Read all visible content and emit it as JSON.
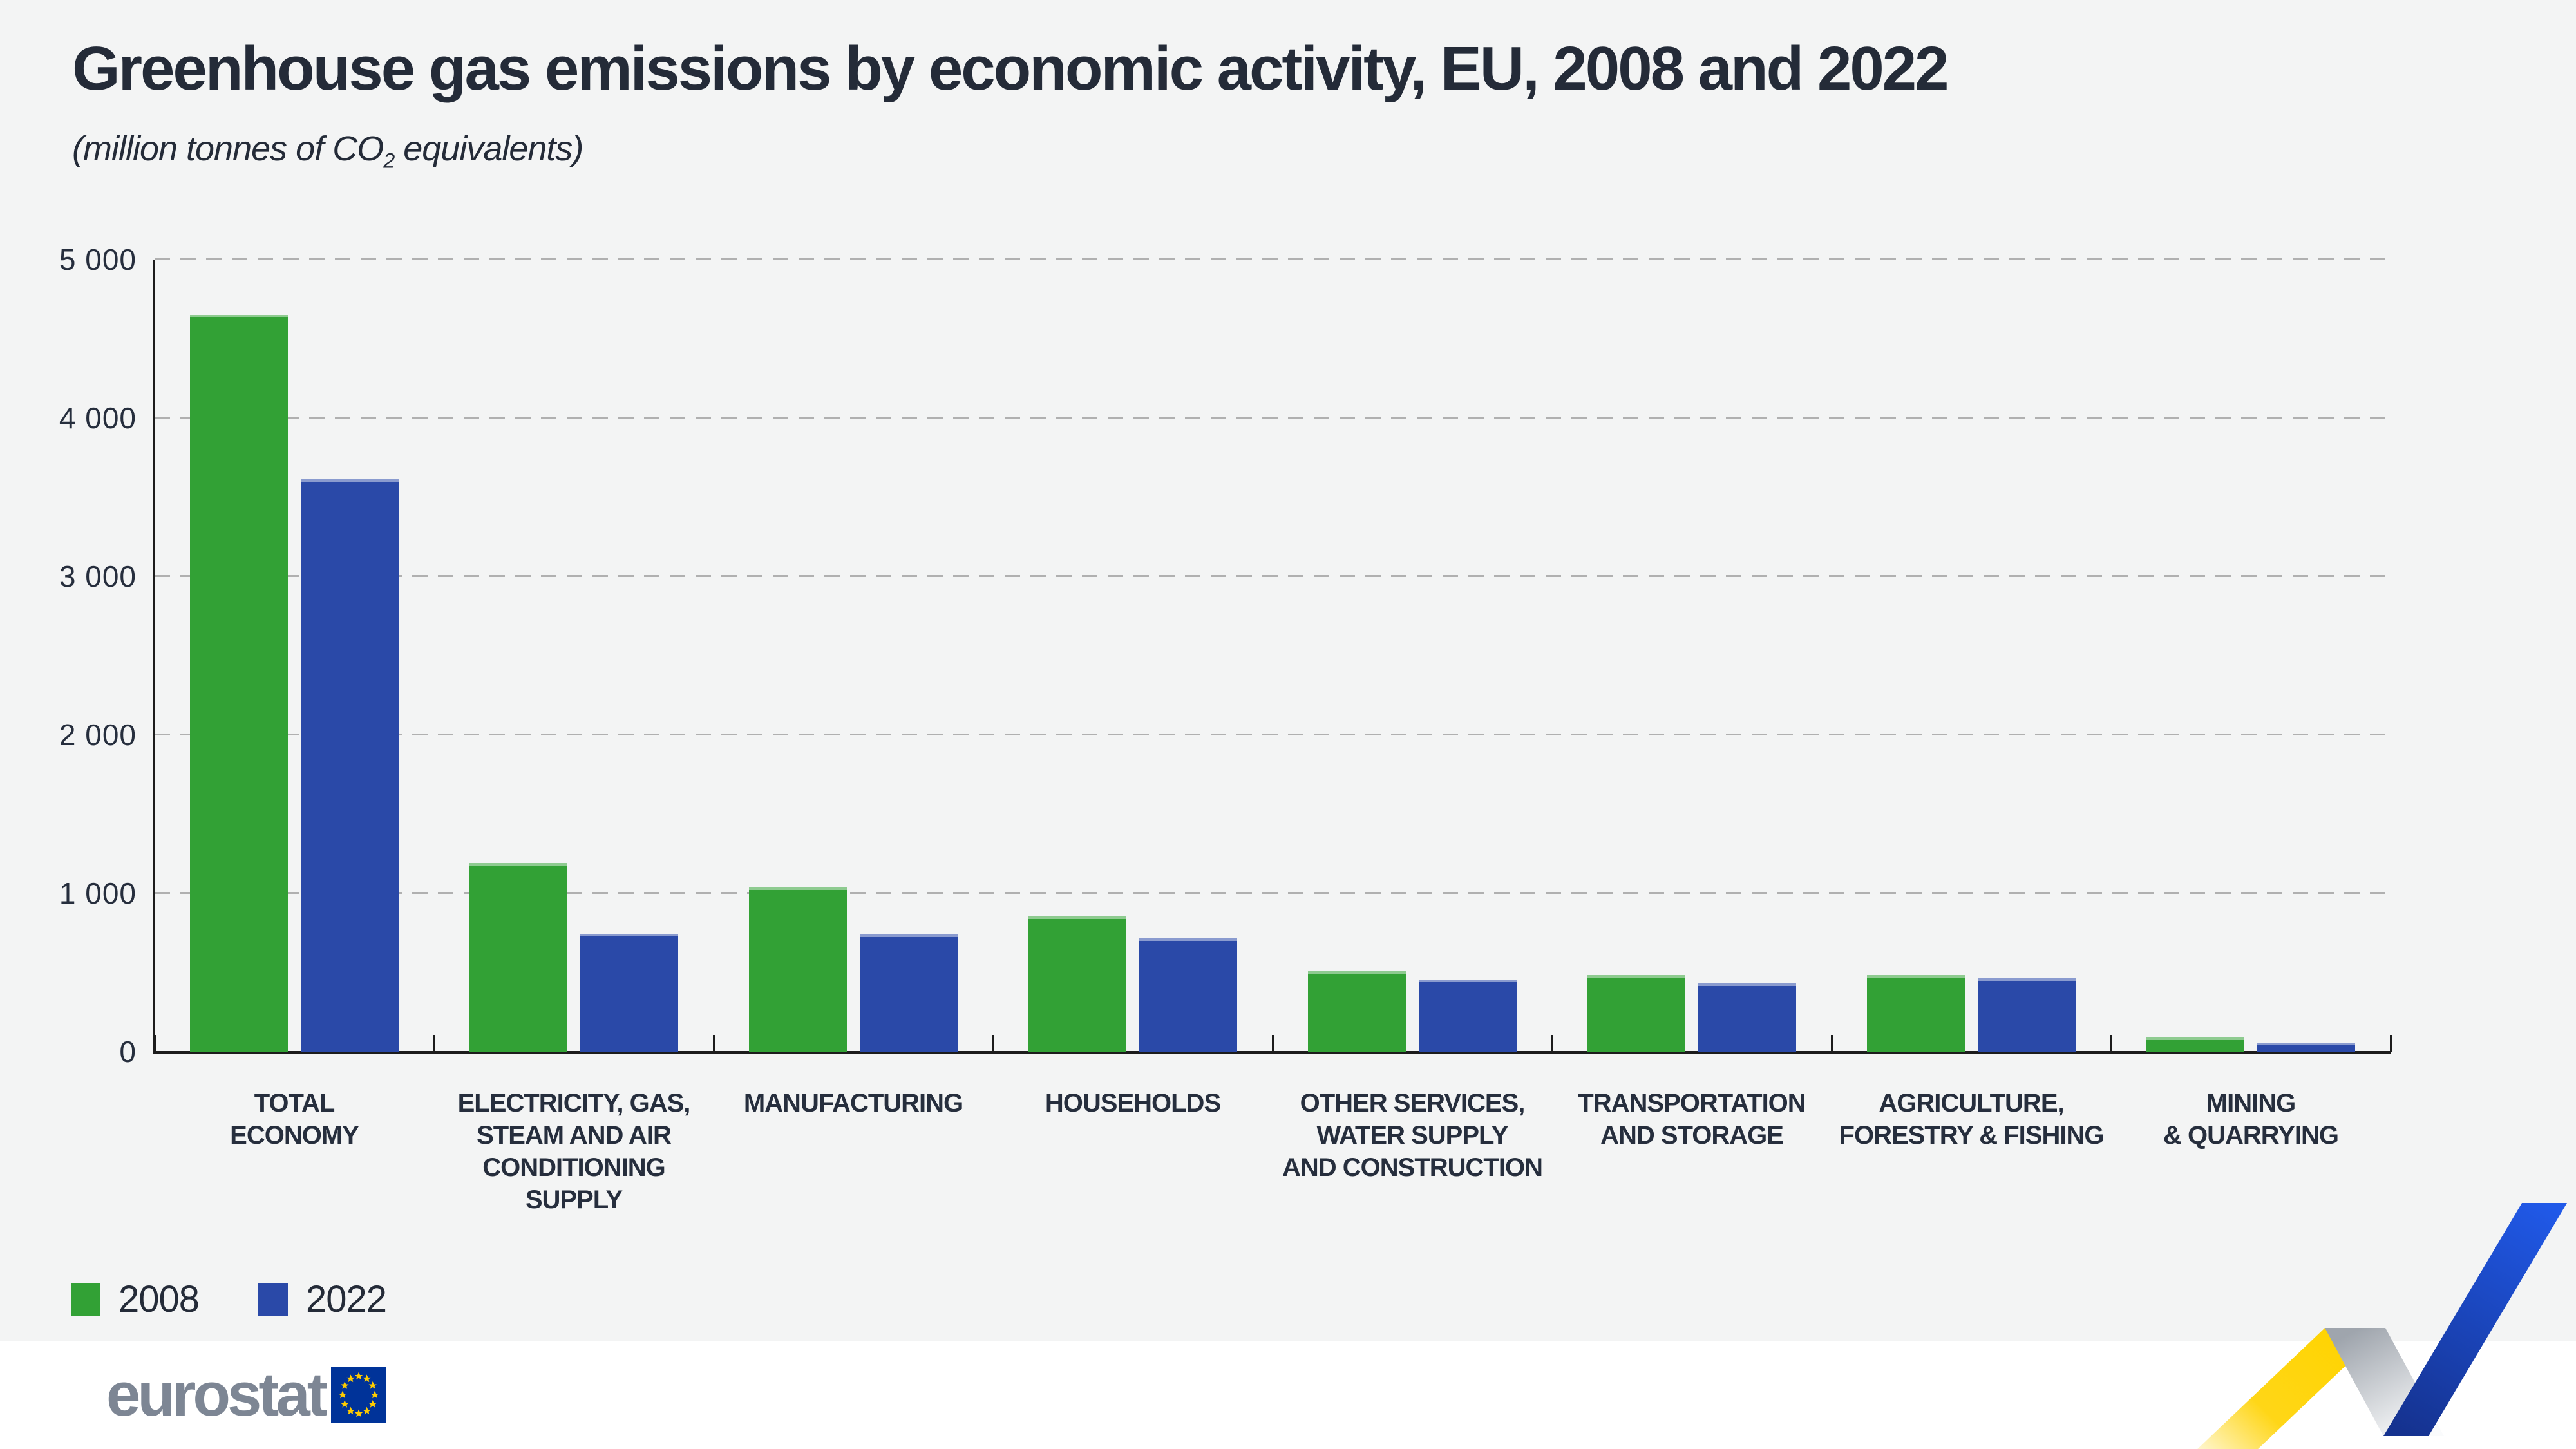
{
  "header": {
    "title": "Greenhouse gas emissions by economic activity, EU, 2008 and 2022",
    "subtitle_prefix": "(million tonnes of CO",
    "subtitle_sub": "2",
    "subtitle_suffix": " equivalents)"
  },
  "legend": [
    {
      "label": "2008",
      "color": "#32A135"
    },
    {
      "label": "2022",
      "color": "#2A49A8"
    }
  ],
  "footer": {
    "logo_text": "eurostat"
  },
  "colors": {
    "background": "#f3f4f4",
    "footer_background": "#ffffff",
    "series_2008_green": "#32A135",
    "series_2022_blue": "#2A49A8",
    "text_dark_navy": "#242b38",
    "gridline_gray": "#b0b0b0",
    "logo_gray": "#7d8694",
    "flag_blue": "#003399",
    "flag_star_yellow": "#FFCC00",
    "ribbon_yellow": "#FFD617",
    "ribbon_blue_bright": "#2059E8",
    "ribbon_blue_dark": "#15328F"
  },
  "chart_data": {
    "type": "bar",
    "title": "Greenhouse gas emissions by economic activity, EU, 2008 and 2022",
    "subtitle": "(million tonnes of CO2 equivalents)",
    "categories": [
      "TOTAL\nECONOMY",
      "ELECTRICITY, GAS,\nSTEAM AND AIR\nCONDITIONING SUPPLY",
      "MANUFACTURING",
      "HOUSEHOLDS",
      "OTHER SERVICES,\nWATER SUPPLY\nAND CONSTRUCTION",
      "TRANSPORTATION\nAND STORAGE",
      "AGRICULTURE,\nFORESTRY & FISHING",
      "MINING\n& QUARRYING"
    ],
    "series": [
      {
        "name": "2008",
        "color": "#32A135",
        "values": [
          4650,
          1190,
          1035,
          855,
          510,
          485,
          485,
          90
        ]
      },
      {
        "name": "2022",
        "color": "#2A49A8",
        "values": [
          3615,
          745,
          740,
          715,
          455,
          430,
          465,
          55
        ]
      }
    ],
    "ylim": [
      0,
      5000
    ],
    "yticks": [
      0,
      1000,
      2000,
      3000,
      4000,
      5000
    ],
    "ytick_labels": [
      "0",
      "1 000",
      "2 000",
      "3 000",
      "4 000",
      "5 000"
    ],
    "grid": "horizontal dashed",
    "legend_position": "bottom-left"
  }
}
